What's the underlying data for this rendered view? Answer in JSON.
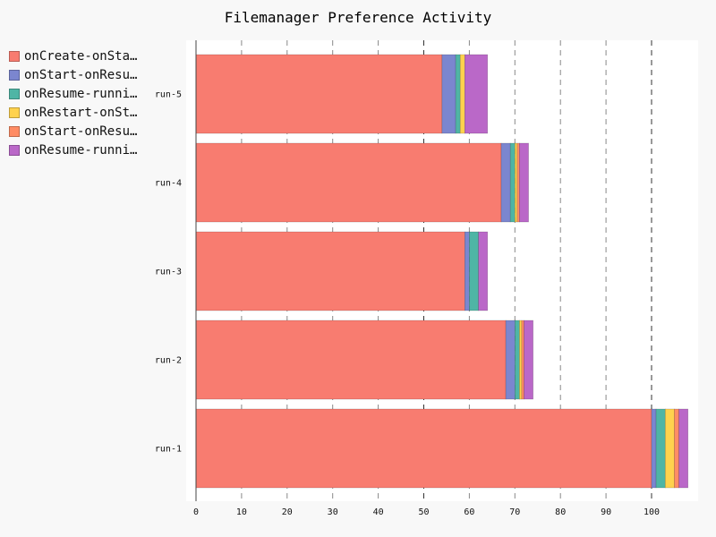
{
  "chart_data": {
    "type": "bar",
    "orientation": "horizontal",
    "stacked": true,
    "title": "Filemanager Preference Activity",
    "xlabel": "",
    "ylabel": "",
    "xlim": [
      0,
      110
    ],
    "x_ticks": [
      0,
      10,
      20,
      30,
      40,
      50,
      60,
      70,
      80,
      90,
      100
    ],
    "emphasized_gridlines": [
      50,
      100
    ],
    "grid": true,
    "legend_position": "top-left",
    "categories": [
      "run-5",
      "run-4",
      "run-3",
      "run-2",
      "run-1"
    ],
    "series": [
      {
        "name": "onCreate-onSta…",
        "color": "#F87C70",
        "values": [
          54,
          67,
          59,
          68,
          100
        ]
      },
      {
        "name": "onStart-onResu…",
        "color": "#7B86CF",
        "values": [
          3,
          2,
          1,
          2,
          1
        ]
      },
      {
        "name": "onResume-runni…",
        "color": "#4FB5A5",
        "values": [
          1,
          1,
          2,
          1,
          2
        ]
      },
      {
        "name": "onRestart-onSt…",
        "color": "#FFD24D",
        "values": [
          1,
          0.5,
          0,
          0.5,
          2
        ]
      },
      {
        "name": "onStart-onResu…",
        "color": "#FF8C64",
        "values": [
          0,
          0.5,
          0,
          0.5,
          1
        ]
      },
      {
        "name": "onResume-runni…",
        "color": "#BA68C8",
        "values": [
          5,
          2,
          2,
          2,
          2
        ]
      }
    ]
  }
}
